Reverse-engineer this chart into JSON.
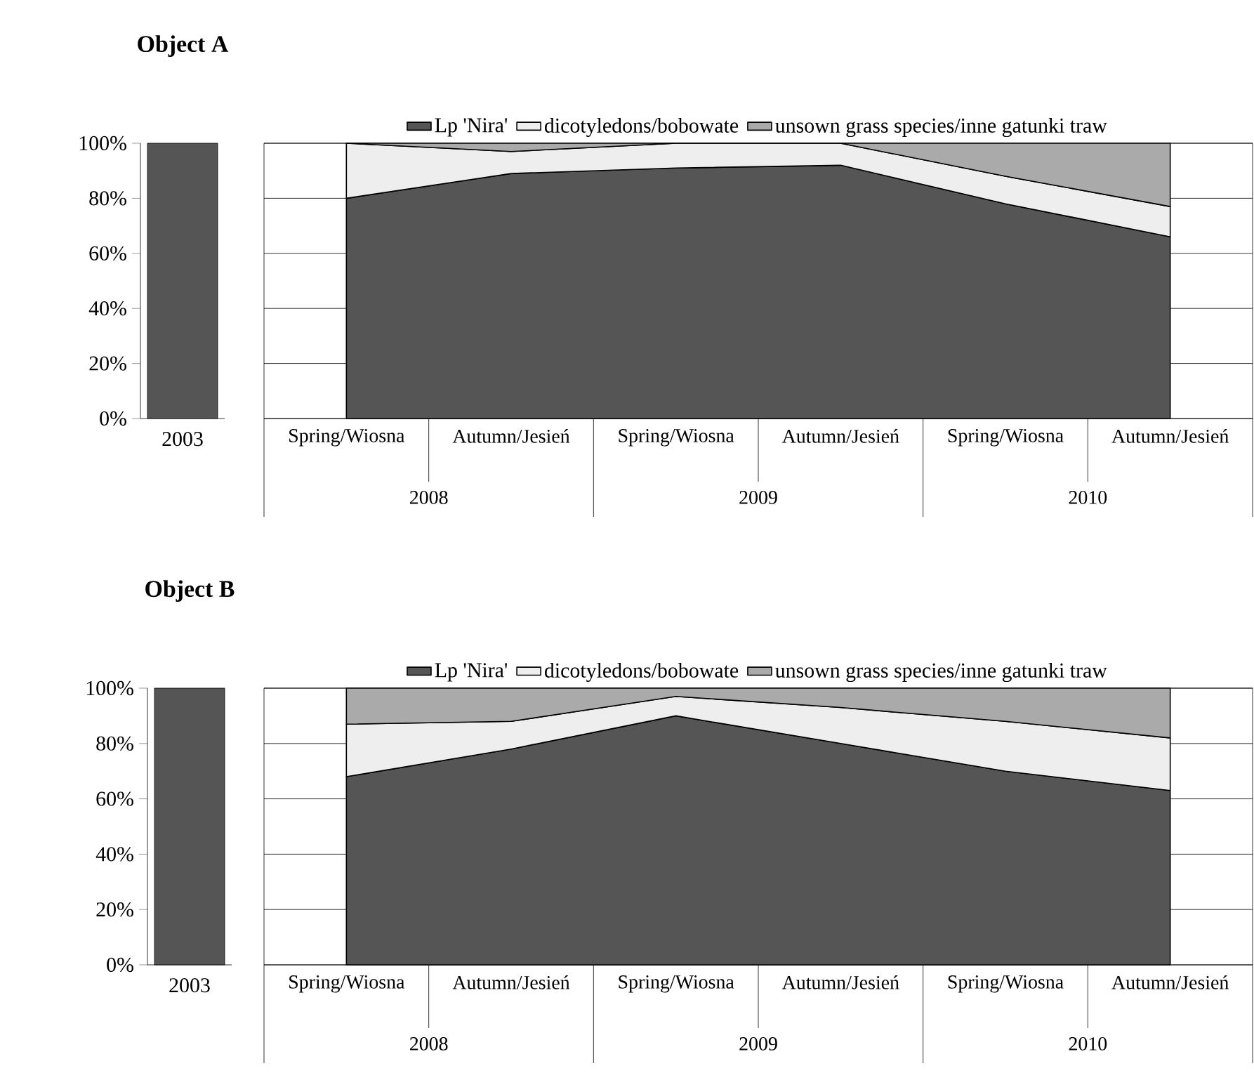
{
  "chart_data": [
    {
      "type": "bar",
      "title": "Object A",
      "categories": [
        "2003"
      ],
      "series": [
        {
          "color": "#555555",
          "values": [
            100
          ]
        }
      ],
      "ylim": [
        0,
        100
      ],
      "yticks": [
        {
          "value": 0,
          "label": "0%"
        },
        {
          "value": 20,
          "label": "20%"
        },
        {
          "value": 40,
          "label": "40%"
        },
        {
          "value": 60,
          "label": "60%"
        },
        {
          "value": 80,
          "label": "80%"
        },
        {
          "value": 100,
          "label": "100%"
        }
      ]
    },
    {
      "type": "area",
      "stacked": true,
      "categories": [
        "Spring/Wiosna",
        "Autumn/Jesień",
        "Spring/Wiosna",
        "Autumn/Jesień",
        "Spring/Wiosna",
        "Autumn/Jesień"
      ],
      "annotations": [
        "2008",
        "2009",
        "2010"
      ],
      "series": [
        {
          "name": "Lp 'Nira'",
          "color": "#555555",
          "values": [
            80,
            89,
            91,
            92,
            78,
            66
          ]
        },
        {
          "name": "dicotyledons/bobowate",
          "color": "#eeeeee",
          "values": [
            20,
            8,
            9,
            8,
            10,
            11
          ]
        },
        {
          "name": "unsown grass species/inne gatunki traw",
          "color": "#aaaaaa",
          "values": [
            0,
            3,
            0,
            0,
            12,
            23
          ]
        }
      ],
      "ylim": [
        0,
        100
      ],
      "yticks": [
        0,
        20,
        40,
        60,
        80,
        100
      ],
      "grid": "y",
      "legend": "top",
      "tick_labels": "x"
    },
    {
      "type": "bar",
      "title": "Object B",
      "categories": [
        "2003"
      ],
      "series": [
        {
          "color": "#555555",
          "values": [
            100
          ]
        }
      ],
      "ylim": [
        0,
        100
      ],
      "yticks": [
        {
          "value": 0,
          "label": "0%"
        },
        {
          "value": 20,
          "label": "20%"
        },
        {
          "value": 40,
          "label": "40%"
        },
        {
          "value": 60,
          "label": "60%"
        },
        {
          "value": 80,
          "label": "80%"
        },
        {
          "value": 100,
          "label": "100%"
        }
      ]
    },
    {
      "type": "area",
      "stacked": true,
      "categories": [
        "Spring/Wiosna",
        "Autumn/Jesień",
        "Spring/Wiosna",
        "Autumn/Jesień",
        "Spring/Wiosna",
        "Autumn/Jesień"
      ],
      "annotations": [
        "2008",
        "2009",
        "2010"
      ],
      "series": [
        {
          "name": "Lp 'Nira'",
          "color": "#555555",
          "values": [
            68,
            78,
            90,
            80,
            70,
            63
          ]
        },
        {
          "name": "dicotyledons/bobowate",
          "color": "#eeeeee",
          "values": [
            19,
            10,
            7,
            13,
            18,
            19
          ]
        },
        {
          "name": "unsown grass species/inne gatunki traw",
          "color": "#aaaaaa",
          "values": [
            13,
            12,
            3,
            7,
            12,
            18
          ]
        }
      ],
      "ylim": [
        0,
        100
      ],
      "yticks": [
        0,
        20,
        40,
        60,
        80,
        100
      ],
      "grid": "y",
      "legend": "top",
      "tick_labels": "x"
    }
  ]
}
